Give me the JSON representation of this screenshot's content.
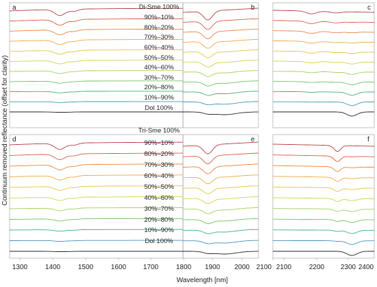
{
  "figure": {
    "ylabel": "Continuum removed reflectance (offset for clarity)",
    "xlabel": "Wavelength [nm]",
    "x_ticks": [
      "1300",
      "1400",
      "1500",
      "1600",
      "1700",
      "1800",
      "1900",
      "2000",
      "2100",
      "2100",
      "2200",
      "2300",
      "2400"
    ],
    "panel_letters": [
      "a",
      "b",
      "c",
      "d",
      "e",
      "f"
    ],
    "top_labels": [
      "Di-Sme 100%",
      "90%–10%",
      "80%–20%",
      "70%–30%",
      "60%–40%",
      "50%–50%",
      "40%–60%",
      "30%–70%",
      "20%–80%",
      "10%–90%",
      "Dol 100%"
    ],
    "bottom_labels": [
      "Tri-Sme 100%",
      "90%–10%",
      "80%–20%",
      "70%–30%",
      "60%–40%",
      "50%–50%",
      "40%–60%",
      "30%–70%",
      "20%–80%",
      "10%–90%",
      "Dol 100%"
    ]
  },
  "chart_data": {
    "type": "line",
    "xlabel": "Wavelength [nm]",
    "ylabel": "Continuum removed reflectance (offset for clarity)",
    "x_ranges_nm": [
      [
        1260,
        1760
      ],
      [
        1760,
        2140
      ],
      [
        2080,
        2410
      ]
    ],
    "grid": false,
    "series_colors": [
      "#b13a3a",
      "#d25a3c",
      "#e8823c",
      "#f0a640",
      "#e6c23e",
      "#cfd24a",
      "#a0cf55",
      "#6cc25f",
      "#3fae74",
      "#3c93b8",
      "#1e1e1e"
    ],
    "panels": [
      {
        "id": "a",
        "x_range": [
          1260,
          1760
        ],
        "series_labels": [
          "Di-Sme 100%",
          "90%–10%",
          "80%–20%",
          "70%–30%",
          "60%–40%",
          "50%–50%",
          "40%–60%",
          "30%–70%",
          "20%–80%",
          "10%–90%",
          "Dol 100%"
        ]
      },
      {
        "id": "b",
        "x_range": [
          1760,
          2140
        ],
        "series_labels": [
          "Di-Sme 100%",
          "90%–10%",
          "80%–20%",
          "70%–30%",
          "60%–40%",
          "50%–50%",
          "40%–60%",
          "30%–70%",
          "20%–80%",
          "10%–90%",
          "Dol 100%"
        ]
      },
      {
        "id": "c",
        "x_range": [
          2080,
          2410
        ],
        "series_labels": [
          "Di-Sme 100%",
          "90%–10%",
          "80%–20%",
          "70%–30%",
          "60%–40%",
          "50%–50%",
          "40%–60%",
          "30%–70%",
          "20%–80%",
          "10%–90%",
          "Dol 100%"
        ]
      },
      {
        "id": "d",
        "x_range": [
          1260,
          1760
        ],
        "series_labels": [
          "Tri-Sme 100%",
          "90%–10%",
          "80%–20%",
          "70%–30%",
          "60%–40%",
          "50%–50%",
          "40%–60%",
          "30%–70%",
          "20%–80%",
          "10%–90%",
          "Dol 100%"
        ]
      },
      {
        "id": "e",
        "x_range": [
          1760,
          2140
        ],
        "series_labels": [
          "Tri-Sme 100%",
          "90%–10%",
          "80%–20%",
          "70%–30%",
          "60%–40%",
          "50%–50%",
          "40%–60%",
          "30%–70%",
          "20%–80%",
          "10%–90%",
          "Dol 100%"
        ]
      },
      {
        "id": "f",
        "x_range": [
          2080,
          2410
        ],
        "series_labels": [
          "Tri-Sme 100%",
          "90%–10%",
          "80%–20%",
          "70%–30%",
          "60%–40%",
          "50%–50%",
          "40%–60%",
          "30%–70%",
          "20%–80%",
          "10%–90%",
          "Dol 100%"
        ]
      }
    ]
  }
}
